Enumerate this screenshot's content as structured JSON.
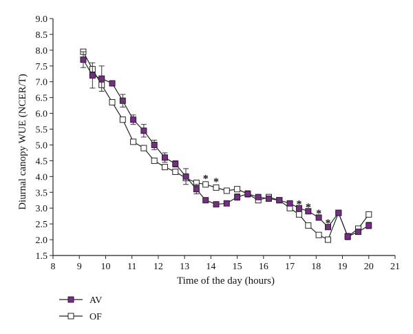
{
  "chart_data": {
    "type": "line",
    "xlabel": "Time of the day (hours)",
    "ylabel": "Diurnal canopy WUE (NCER/T)",
    "xlim": [
      8,
      21
    ],
    "ylim": [
      1.5,
      9.0
    ],
    "x_ticks": [
      "8",
      "9",
      "10",
      "11",
      "12",
      "13",
      "14",
      "15",
      "16",
      "17",
      "18",
      "19",
      "20",
      "21"
    ],
    "y_ticks": [
      "1.5",
      "2.0",
      "2.5",
      "3.0",
      "3.5",
      "4.0",
      "4.5",
      "5.0",
      "5.5",
      "6.0",
      "6.5",
      "7.0",
      "7.5",
      "8.0",
      "8.5",
      "9.0"
    ],
    "grid": false,
    "legend_position": "bottom-left",
    "series": [
      {
        "name": "AV",
        "marker": "filled-square",
        "color": "#7b2a8c",
        "x": [
          9.15,
          9.5,
          9.85,
          10.25,
          10.65,
          11.05,
          11.45,
          11.85,
          12.25,
          12.65,
          13.05,
          13.45,
          13.8,
          14.2,
          14.6,
          15.0,
          15.4,
          15.8,
          16.2,
          16.6,
          17.0,
          17.35,
          17.7,
          18.1,
          18.45,
          18.85,
          19.2,
          19.6,
          20.0
        ],
        "y": [
          7.7,
          7.2,
          7.1,
          6.95,
          6.4,
          5.8,
          5.45,
          5.0,
          4.6,
          4.4,
          4.0,
          3.6,
          3.25,
          3.12,
          3.15,
          3.35,
          3.45,
          3.35,
          3.3,
          3.25,
          3.15,
          3.0,
          2.9,
          2.7,
          2.4,
          2.85,
          2.1,
          2.25,
          2.45
        ],
        "err": [
          0.25,
          0.4,
          0.4,
          0.05,
          0.2,
          0.15,
          0.2,
          0.15,
          0.15,
          0.1,
          0.25,
          0.15,
          0.05,
          0.05,
          0.05,
          0.1,
          0.1,
          0.05,
          0.05,
          0.05,
          0.05,
          0.05,
          0.05,
          0.05,
          0.05,
          0.05,
          0.1,
          0.05,
          0.1
        ]
      },
      {
        "name": "OF",
        "marker": "open-square",
        "color": "#ffffff",
        "x": [
          9.15,
          9.5,
          9.85,
          10.25,
          10.65,
          11.05,
          11.45,
          11.85,
          12.25,
          12.65,
          13.05,
          13.45,
          13.8,
          14.2,
          14.6,
          15.0,
          15.4,
          15.8,
          16.2,
          16.6,
          17.0,
          17.35,
          17.7,
          18.1,
          18.45,
          18.85,
          19.2,
          19.6,
          20.0
        ],
        "y": [
          7.95,
          7.4,
          6.9,
          6.35,
          5.8,
          5.1,
          4.9,
          4.5,
          4.3,
          4.15,
          3.95,
          3.8,
          3.75,
          3.65,
          3.55,
          3.6,
          3.45,
          3.25,
          3.35,
          3.25,
          3.0,
          2.8,
          2.45,
          2.15,
          2.0,
          2.85,
          2.1,
          2.35,
          2.8
        ]
      }
    ],
    "annotations": [
      {
        "text": "*",
        "x": 13.8,
        "y": 3.95
      },
      {
        "text": "*",
        "x": 14.2,
        "y": 3.85
      },
      {
        "text": "*",
        "x": 17.35,
        "y": 3.15
      },
      {
        "text": "*",
        "x": 17.7,
        "y": 3.05
      },
      {
        "text": "*",
        "x": 18.1,
        "y": 2.85
      },
      {
        "text": "*",
        "x": 18.45,
        "y": 2.55
      }
    ]
  }
}
